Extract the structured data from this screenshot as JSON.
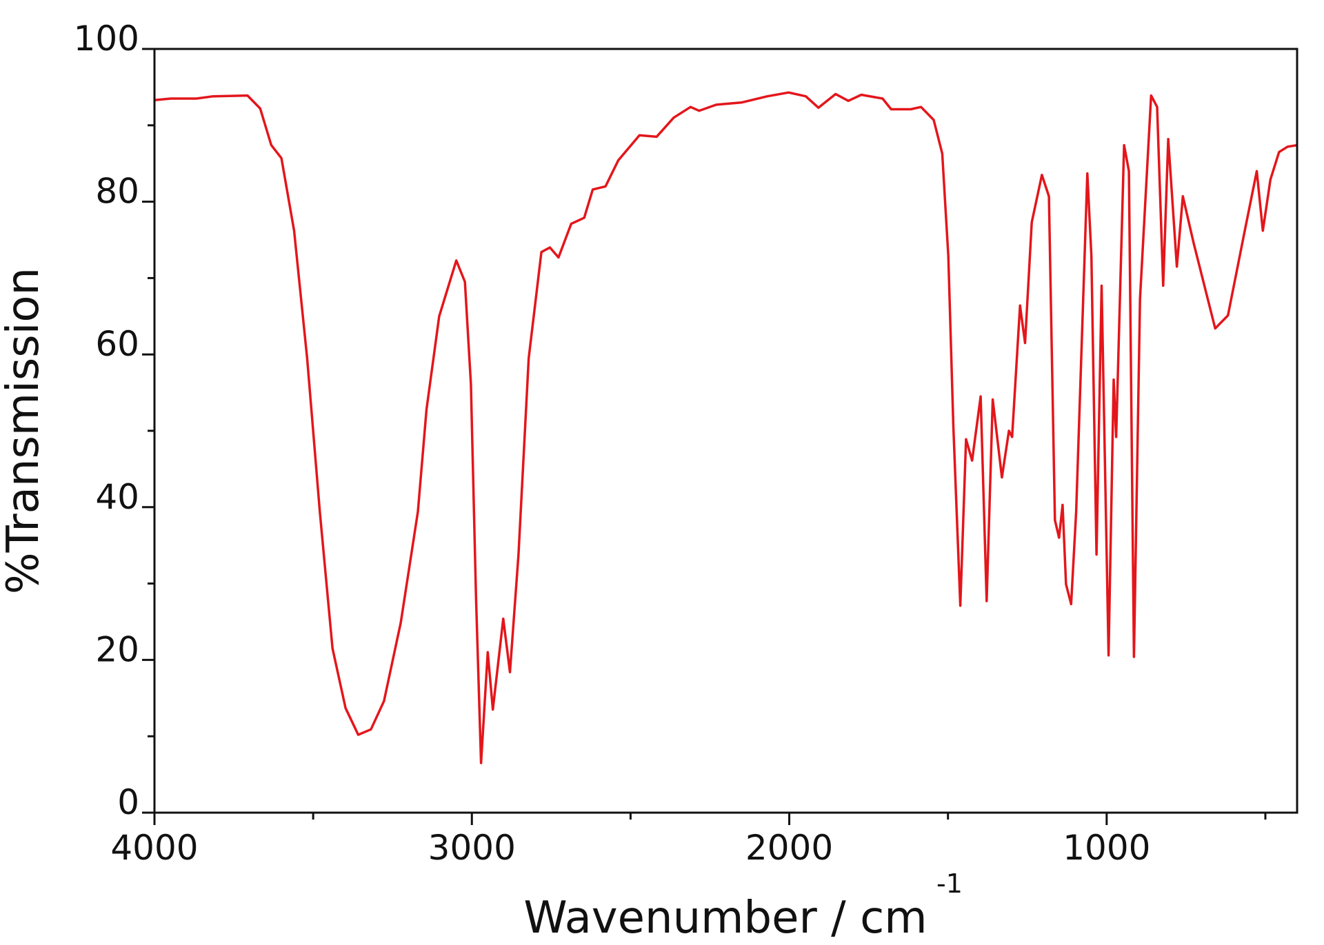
{
  "chart_data": {
    "type": "line",
    "xlabel": "Wavenumber / cm",
    "xlabel_superscript": "-1",
    "ylabel": "%Transmission",
    "xlim": [
      4000,
      400
    ],
    "ylim": [
      0,
      100
    ],
    "xticks": [
      4000,
      3000,
      2000,
      1000
    ],
    "xticks_minor": [
      3500,
      2500,
      1500,
      500
    ],
    "yticks": [
      0,
      20,
      40,
      60,
      80,
      100
    ],
    "yticks_minor": [
      10,
      30,
      50,
      70,
      90
    ],
    "grid": false,
    "series": [
      {
        "color": "#e3161b",
        "x": [
          4000,
          3949,
          3868,
          3815,
          3707,
          3667,
          3632,
          3600,
          3560,
          3519,
          3479,
          3439,
          3398,
          3358,
          3318,
          3277,
          3224,
          3170,
          3143,
          3103,
          3049,
          3022,
          3003,
          2987,
          2971,
          2950,
          2934,
          2901,
          2880,
          2853,
          2821,
          2781,
          2754,
          2727,
          2687,
          2646,
          2619,
          2579,
          2539,
          2472,
          2418,
          2364,
          2311,
          2284,
          2230,
          2149,
          2069,
          2002,
          1948,
          1908,
          1854,
          1814,
          1773,
          1706,
          1679,
          1617,
          1585,
          1545,
          1518,
          1499,
          1483,
          1461,
          1443,
          1424,
          1397,
          1378,
          1359,
          1330,
          1308,
          1298,
          1273,
          1257,
          1236,
          1204,
          1182,
          1163,
          1150,
          1139,
          1128,
          1112,
          1096,
          1061,
          1048,
          1032,
          1016,
          994,
          978,
          970,
          945,
          930,
          914,
          895,
          860,
          841,
          822,
          806,
          779,
          760,
          726,
          658,
          618,
          565,
          527,
          508,
          484,
          457,
          430,
          400
        ],
        "y": [
          93.3,
          93.5,
          93.5,
          93.8,
          93.9,
          92.2,
          87.4,
          85.7,
          76.2,
          59.5,
          39.4,
          21.5,
          13.7,
          10.2,
          10.9,
          14.6,
          24.9,
          39.4,
          52.8,
          65,
          72.3,
          69.5,
          56.1,
          28.2,
          6.5,
          21,
          13.5,
          25.4,
          18.4,
          33.8,
          59.5,
          73.4,
          74,
          72.7,
          77.1,
          77.9,
          81.6,
          82,
          85.4,
          88.7,
          88.5,
          91,
          92.4,
          91.9,
          92.7,
          93,
          93.8,
          94.3,
          93.8,
          92.3,
          94.1,
          93.2,
          94,
          93.5,
          92.1,
          92.1,
          92.4,
          90.7,
          86.3,
          72.9,
          50.6,
          27.1,
          48.9,
          46.1,
          54.5,
          27.7,
          54.1,
          43.9,
          50,
          49.2,
          66.4,
          61.5,
          77.3,
          83.5,
          80.7,
          38.3,
          36,
          40.3,
          29.9,
          27.3,
          39.4,
          83.7,
          72.9,
          33.8,
          69,
          20.6,
          56.7,
          49.2,
          87.4,
          84,
          20.4,
          67.3,
          93.9,
          92.4,
          69,
          88.2,
          71.5,
          80.7,
          74.6,
          63.4,
          65.1,
          76.2,
          84,
          76.2,
          82.9,
          86.5,
          87.2,
          87.4
        ]
      }
    ]
  }
}
